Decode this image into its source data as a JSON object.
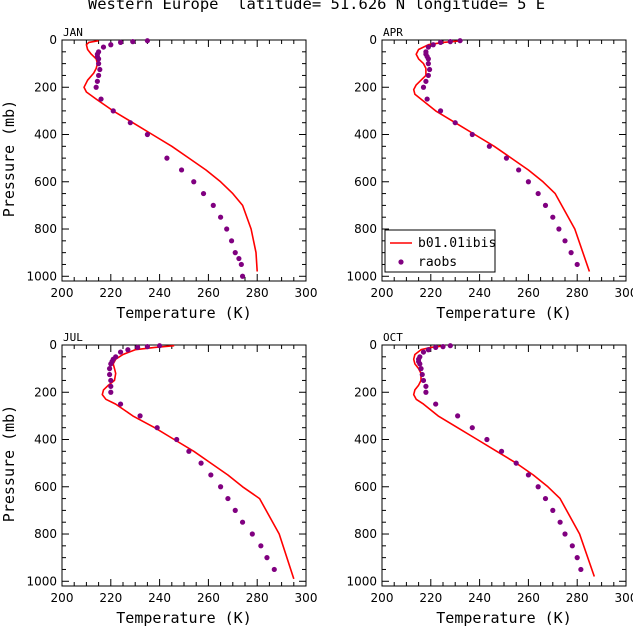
{
  "figure": {
    "title": "Western Europe  latitude= 51.626 N longitude= 5 E"
  },
  "colors": {
    "model": "#ff0000",
    "obs": "#800080",
    "axis": "#000000"
  },
  "chart_data": [
    {
      "type": "line",
      "panel_label": "JAN",
      "xlabel": "Temperature (K)",
      "ylabel": "Pressure (mb)",
      "xlim": [
        200,
        300
      ],
      "ylim": [
        1020,
        0
      ],
      "x_ticks": [
        200,
        220,
        240,
        260,
        280,
        300
      ],
      "y_ticks": [
        0,
        200,
        400,
        600,
        800,
        1000
      ],
      "series": [
        {
          "name": "b01.01ibis",
          "kind": "line",
          "x": [
            215,
            211,
            210,
            210.5,
            212,
            214,
            214.5,
            214,
            213,
            210.5,
            209,
            210,
            214,
            221,
            229,
            237,
            245,
            252,
            259,
            265,
            270,
            274,
            277.5,
            279.5,
            280
          ],
          "y": [
            3,
            10,
            20,
            40,
            60,
            80,
            100,
            120,
            140,
            170,
            200,
            220,
            250,
            300,
            350,
            400,
            450,
            500,
            550,
            600,
            650,
            700,
            800,
            900,
            980
          ]
        },
        {
          "name": "raobs",
          "kind": "points",
          "x": [
            235,
            229,
            224,
            220,
            217,
            215,
            214.5,
            214.5,
            215,
            215,
            215.5,
            215,
            214.5,
            214,
            216,
            221,
            228,
            235,
            243,
            249,
            254,
            258,
            262,
            265,
            267.5,
            269.5,
            271,
            272.5,
            273.5,
            274
          ],
          "y": [
            3,
            7,
            10,
            20,
            30,
            50,
            60,
            70,
            80,
            100,
            125,
            150,
            175,
            200,
            250,
            300,
            350,
            400,
            500,
            550,
            600,
            650,
            700,
            750,
            800,
            850,
            900,
            925,
            950,
            1000
          ]
        }
      ]
    },
    {
      "type": "line",
      "panel_label": "APR",
      "xlabel": "Temperature (K)",
      "ylabel": "",
      "xlim": [
        200,
        300
      ],
      "ylim": [
        1020,
        0
      ],
      "x_ticks": [
        200,
        220,
        240,
        260,
        280,
        300
      ],
      "y_ticks": [
        0,
        200,
        400,
        600,
        800,
        1000
      ],
      "series": [
        {
          "name": "b01.01ibis",
          "kind": "line",
          "x": [
            233,
            225,
            219,
            215,
            214,
            215,
            217,
            218,
            218,
            216,
            214,
            213,
            213.5,
            216,
            222,
            230,
            238,
            246,
            253,
            260,
            266,
            271,
            279,
            285
          ],
          "y": [
            3,
            10,
            20,
            40,
            60,
            80,
            100,
            120,
            150,
            170,
            190,
            210,
            230,
            250,
            300,
            350,
            400,
            450,
            500,
            550,
            600,
            650,
            800,
            980
          ]
        },
        {
          "name": "raobs",
          "kind": "points",
          "x": [
            232,
            228,
            224,
            221,
            219,
            218,
            218,
            218.5,
            219,
            219,
            219.5,
            219,
            218,
            217,
            218.5,
            224,
            230,
            237,
            244,
            251,
            256,
            260,
            264,
            267,
            270,
            272.5,
            275,
            277.5,
            280
          ],
          "y": [
            3,
            7,
            10,
            20,
            30,
            50,
            60,
            70,
            80,
            100,
            125,
            150,
            175,
            200,
            250,
            300,
            350,
            400,
            450,
            500,
            550,
            600,
            650,
            700,
            750,
            800,
            850,
            900,
            950
          ]
        }
      ]
    },
    {
      "type": "line",
      "panel_label": "JUL",
      "xlabel": "Temperature (K)",
      "ylabel": "Pressure (mb)",
      "xlim": [
        200,
        300
      ],
      "ylim": [
        1020,
        0
      ],
      "x_ticks": [
        200,
        220,
        240,
        260,
        280,
        300
      ],
      "y_ticks": [
        0,
        200,
        400,
        600,
        800,
        1000
      ],
      "series": [
        {
          "name": "b01.01ibis",
          "kind": "line",
          "x": [
            246,
            238,
            230,
            225,
            222,
            221,
            221.5,
            222,
            221.5,
            219,
            217,
            216.5,
            218,
            222,
            229,
            238,
            246,
            254,
            261,
            268,
            274,
            281,
            289,
            295
          ],
          "y": [
            3,
            10,
            20,
            40,
            60,
            80,
            100,
            120,
            150,
            170,
            190,
            210,
            230,
            250,
            300,
            350,
            400,
            450,
            500,
            550,
            600,
            650,
            800,
            990
          ]
        },
        {
          "name": "raobs",
          "kind": "points",
          "x": [
            240,
            235,
            231,
            227,
            224,
            222,
            221,
            220.5,
            220,
            219.5,
            219.5,
            220,
            220,
            220,
            224,
            232,
            239,
            247,
            252,
            257,
            261,
            265,
            268,
            271,
            274,
            278,
            281.5,
            284,
            287
          ],
          "y": [
            3,
            7,
            10,
            20,
            30,
            50,
            60,
            70,
            80,
            100,
            125,
            150,
            175,
            200,
            250,
            300,
            350,
            400,
            450,
            500,
            550,
            600,
            650,
            700,
            750,
            800,
            850,
            900,
            950
          ]
        }
      ]
    },
    {
      "type": "line",
      "panel_label": "OCT",
      "xlabel": "Temperature (K)",
      "ylabel": "",
      "xlim": [
        200,
        300
      ],
      "ylim": [
        1020,
        0
      ],
      "x_ticks": [
        200,
        220,
        240,
        260,
        280,
        300
      ],
      "y_ticks": [
        0,
        200,
        400,
        600,
        800,
        1000
      ],
      "series": [
        {
          "name": "b01.01ibis",
          "kind": "line",
          "x": [
            226,
            220,
            216,
            213.5,
            213,
            213.5,
            215,
            216,
            216,
            215,
            213.5,
            213,
            214,
            217,
            223,
            231,
            239,
            247,
            255,
            262,
            268,
            273,
            281,
            287
          ],
          "y": [
            3,
            10,
            20,
            40,
            60,
            80,
            100,
            120,
            150,
            170,
            190,
            210,
            230,
            250,
            300,
            350,
            400,
            450,
            500,
            550,
            600,
            650,
            800,
            980
          ]
        },
        {
          "name": "raobs",
          "kind": "points",
          "x": [
            228,
            225,
            222,
            219,
            217,
            215.5,
            215,
            215,
            215.5,
            216,
            216.5,
            217,
            218,
            218,
            222,
            231,
            237,
            243,
            249,
            255,
            260,
            264,
            267,
            270,
            273,
            275,
            278,
            280,
            281.5
          ],
          "y": [
            3,
            7,
            10,
            20,
            30,
            50,
            60,
            70,
            80,
            100,
            125,
            150,
            175,
            200,
            250,
            300,
            350,
            400,
            450,
            500,
            550,
            600,
            650,
            700,
            750,
            800,
            850,
            900,
            950
          ]
        }
      ]
    }
  ],
  "legend": {
    "items": [
      {
        "label": "b01.01ibis",
        "kind": "line"
      },
      {
        "label": "raobs",
        "kind": "points"
      }
    ]
  }
}
